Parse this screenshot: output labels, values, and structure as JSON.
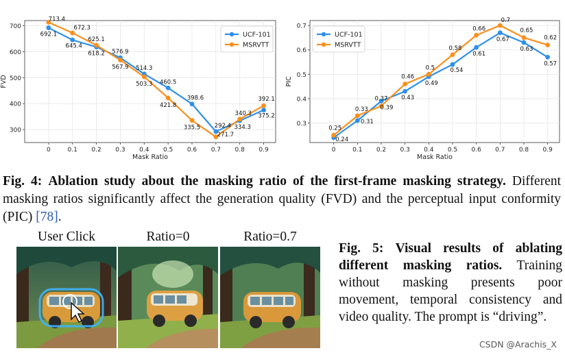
{
  "chart_data": [
    {
      "type": "line",
      "xlabel": "Mask Ratio",
      "ylabel": "FVD",
      "x": [
        0,
        0.1,
        0.2,
        0.3,
        0.4,
        0.5,
        0.6,
        0.7,
        0.8,
        0.9
      ],
      "x_ticks": [
        "0",
        "0.1",
        "0.2",
        "0.3",
        "0.4",
        "0.5",
        "0.6",
        "0.7",
        "0.8",
        "0.9"
      ],
      "ylim": [
        250,
        720
      ],
      "y_ticks": [
        300,
        400,
        500,
        600,
        700
      ],
      "grid": true,
      "legend": "top-right",
      "series": [
        {
          "name": "UCF-101",
          "color": "#2f8fe8",
          "values": [
            692.1,
            645.4,
            618.2,
            576.9,
            514.3,
            460.5,
            398.6,
            292.4,
            334.3,
            375.2
          ],
          "labels": [
            "692.1",
            "645.4",
            "618.2",
            "576.9",
            "514.3",
            "460.5",
            "398.6",
            "292.4",
            "334.3",
            "375.2"
          ]
        },
        {
          "name": "MSRVTT",
          "color": "#f7901e",
          "values": [
            713.4,
            672.3,
            625.1,
            567.9,
            503.3,
            421.8,
            335.5,
            271.7,
            340.3,
            392.1
          ],
          "labels": [
            "713.4",
            "672.3",
            "625.1",
            "567.9",
            "503.3",
            "421.8",
            "335.5",
            "271.7",
            "340.3",
            "392.1"
          ]
        }
      ]
    },
    {
      "type": "line",
      "xlabel": "Mask Ratio",
      "ylabel": "PIC",
      "x": [
        0,
        0.1,
        0.2,
        0.3,
        0.4,
        0.5,
        0.6,
        0.7,
        0.8,
        0.9
      ],
      "x_ticks": [
        "0",
        "0.1",
        "0.2",
        "0.3",
        "0.4",
        "0.5",
        "0.6",
        "0.7",
        "0.8",
        "0.9"
      ],
      "ylim": [
        0.22,
        0.72
      ],
      "y_ticks": [
        "0.3",
        "0.4",
        "0.5",
        "0.6",
        "0.7"
      ],
      "grid": true,
      "legend": "top-left",
      "series": [
        {
          "name": "UCF-101",
          "color": "#2f8fe8",
          "values": [
            0.24,
            0.31,
            0.39,
            0.43,
            0.49,
            0.54,
            0.61,
            0.67,
            0.63,
            0.57
          ],
          "labels": [
            "0.24",
            "0.31",
            "0.39",
            "0.43",
            "0.49",
            "0.54",
            "0.61",
            "0.67",
            "0.63",
            "0.57"
          ]
        },
        {
          "name": "MSRVTT",
          "color": "#f7901e",
          "values": [
            0.25,
            0.33,
            0.37,
            0.46,
            0.5,
            0.58,
            0.66,
            0.7,
            0.65,
            0.62
          ],
          "labels": [
            "0.25",
            "0.33",
            "0.37",
            "0.46",
            "0.5",
            "0.58",
            "0.66",
            "0.7",
            "0.65",
            "0.62"
          ]
        }
      ]
    }
  ],
  "fig4": {
    "label": "Fig. 4:",
    "bold": "Ablation study about the masking ratio of the first-frame masking strategy.",
    "text": "Different masking ratios significantly affect the generation quality (FVD) and the perceptual input conformity (PIC)",
    "ref": "[78]",
    "end": "."
  },
  "fig5": {
    "labels": [
      "User Click",
      "Ratio=0",
      "Ratio=0.7"
    ],
    "label": "Fig. 5:",
    "bold": "Visual results of ablating different masking ratios.",
    "text": "Training without masking presents poor movement, temporal consistency and video quality. The prompt is “driving”."
  },
  "watermark": "CSDN @Arachis_X"
}
